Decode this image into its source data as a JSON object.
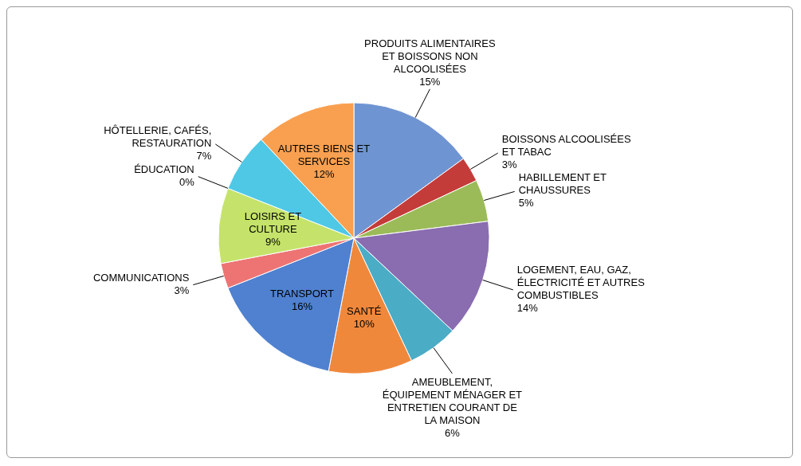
{
  "chart_data": {
    "type": "pie",
    "categories": [
      "PRODUITS ALIMENTAIRES ET BOISSONS NON ALCOOLISÉES",
      "BOISSONS ALCOOLISÉES ET TABAC",
      "HABILLEMENT ET CHAUSSURES",
      "LOGEMENT, EAU, GAZ, ÉLECTRICITÉ ET AUTRES COMBUSTIBLES",
      "AMEUBLEMENT, ÉQUIPEMENT MÉNAGER ET ENTRETIEN COURANT DE LA MAISON",
      "SANTÉ",
      "TRANSPORT",
      "COMMUNICATIONS",
      "LOISIRS ET CULTURE",
      "ÉDUCATION",
      "HÔTELLERIE, CAFÉS, RESTAURATION",
      "AUTRES BIENS ET SERVICES"
    ],
    "values": [
      15,
      3,
      5,
      14,
      6,
      10,
      16,
      3,
      9,
      0,
      7,
      12
    ],
    "value_labels": [
      "15%",
      "3%",
      "5%",
      "14%",
      "6%",
      "10%",
      "16%",
      "3%",
      "9%",
      "0%",
      "7%",
      "12%"
    ],
    "colors": [
      "#6f94d2",
      "#c43c3a",
      "#9bbb59",
      "#8a6cb0",
      "#4bacc6",
      "#f0883c",
      "#4f81d0",
      "#ee7474",
      "#c5e36a",
      "#a77fc0",
      "#4fc8e6",
      "#f9a050"
    ]
  }
}
